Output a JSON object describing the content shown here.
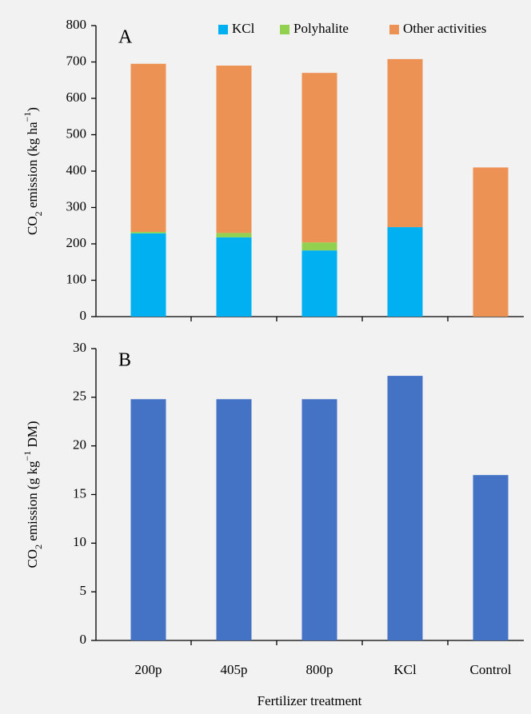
{
  "chart_data": [
    {
      "type": "stacked-bar",
      "panel_label": "A",
      "y_label_parts": [
        "CO",
        "2",
        " emission (kg ha",
        "−1",
        ")"
      ],
      "series": [
        {
          "name": "KCl",
          "color": "#00b0f0",
          "values": [
            229,
            218,
            182,
            246,
            0
          ]
        },
        {
          "name": "Polyhalite",
          "color": "#92d050",
          "values": [
            4,
            12,
            22,
            0,
            0
          ]
        },
        {
          "name": "Other activities",
          "color": "#ed9255",
          "values": [
            462,
            460,
            466,
            462,
            410
          ]
        }
      ],
      "ylim": [
        0,
        800
      ],
      "yticks": [
        0,
        100,
        200,
        300,
        400,
        500,
        600,
        700,
        800
      ]
    },
    {
      "type": "bar",
      "panel_label": "B",
      "y_label_parts": [
        "CO",
        "2",
        " emission (g kg",
        "−1",
        " DM)"
      ],
      "x_label": "Fertilizer treatment",
      "categories": [
        "200p",
        "405p",
        "800p",
        "KCl",
        "Control"
      ],
      "values": [
        24.8,
        24.8,
        24.8,
        27.2,
        17.0
      ],
      "color": "#4472c4",
      "ylim": [
        0,
        30
      ],
      "yticks": [
        0,
        5,
        10,
        15,
        20,
        25,
        30
      ]
    }
  ]
}
